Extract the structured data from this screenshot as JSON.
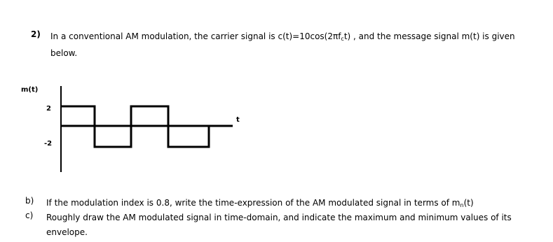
{
  "question": {
    "number": "2)",
    "text_before": "In a conventional AM modulation, the carrier signal is c(t)=10cos(2πf",
    "text_sub": "c",
    "text_after": "t) , and the message signal m(t) is given below."
  },
  "figure": {
    "y_label": "m(t)",
    "x_label": "t",
    "high_label": "2",
    "low_label": "-2"
  },
  "parts": [
    {
      "label": "b)",
      "text_before": "If the modulation index is 0.8, write the time-expression of the AM modulated signal in terms of m",
      "text_sub": "n",
      "text_after": "(t)"
    },
    {
      "label": "c)",
      "text": "Roughly draw the AM modulated signal in time-domain, and indicate the maximum and minimum values of its envelope."
    }
  ]
}
